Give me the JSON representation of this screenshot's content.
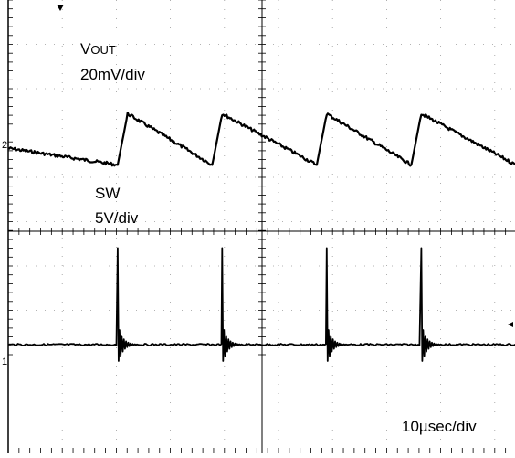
{
  "chart_data": {
    "type": "line",
    "title": "",
    "grid": true,
    "divisions": {
      "x": 10,
      "y": 8
    },
    "series": [
      {
        "channel": 1,
        "label_main": "V",
        "label_sub": "OUT",
        "scale": "20mV/div",
        "waveform": "sawtooth",
        "x_div": [
          0.0,
          1.1,
          1.2,
          2.05,
          2.15,
          3.1,
          3.2,
          4.05,
          4.15,
          5.1,
          5.2,
          6.0
        ],
        "y_div": [
          -0.15,
          -0.8,
          1.2,
          -0.8,
          1.2,
          -0.8,
          1.2,
          -0.8,
          1.2,
          -0.8,
          1.2,
          0.6
        ],
        "marker": "2"
      },
      {
        "channel": 2,
        "label_main": "SW",
        "scale": "5V/div",
        "waveform": "switching spikes",
        "baseline_div": 0.0,
        "spike_x_div": [
          1.1,
          2.15,
          3.2,
          4.15,
          5.2
        ],
        "spike_peak_div": 2.4,
        "marker": "1"
      }
    ],
    "timebase": "10µsec/div"
  }
}
